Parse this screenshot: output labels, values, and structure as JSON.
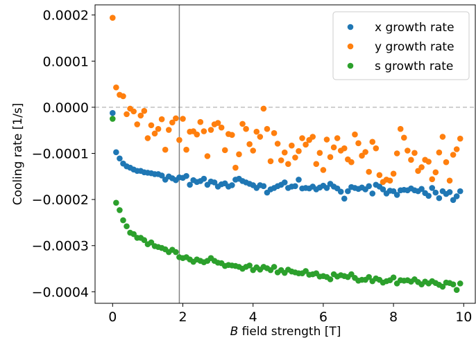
{
  "chart_data": {
    "type": "scatter",
    "xlabel_italic": "B",
    "xlabel_rest": " field strength [T]",
    "ylabel": "Cooling rate [1/s]",
    "xlim": [
      -0.5,
      10.35
    ],
    "ylim": [
      -0.000425,
      0.000222
    ],
    "xticks": [
      0,
      2,
      4,
      6,
      8,
      10
    ],
    "xtick_labels": [
      "0",
      "2",
      "4",
      "6",
      "8",
      "10"
    ],
    "yticks": [
      0.0002,
      0.0001,
      0.0,
      -0.0001,
      -0.0002,
      -0.0003,
      -0.0004
    ],
    "ytick_labels": [
      "0.0002",
      "0.0001",
      "0.0000",
      "−0.0001",
      "−0.0002",
      "−0.0003",
      "−0.0004"
    ],
    "reference_hline": 0.0,
    "reference_vline": 1.9,
    "legend_position": "top-right",
    "series": [
      {
        "name": "x growth rate",
        "color": "#1f77b4",
        "x": [
          0.0,
          0.1,
          0.2,
          0.3,
          0.4,
          0.5,
          0.6,
          0.7,
          0.8,
          0.9,
          1.0,
          1.1,
          1.2,
          1.3,
          1.4,
          1.5,
          1.6,
          1.7,
          1.8,
          1.9,
          2.0,
          2.1,
          2.2,
          2.3,
          2.4,
          2.5,
          2.6,
          2.7,
          2.8,
          2.9,
          3.0,
          3.1,
          3.2,
          3.3,
          3.4,
          3.5,
          3.6,
          3.7,
          3.8,
          3.9,
          4.0,
          4.1,
          4.2,
          4.3,
          4.4,
          4.5,
          4.6,
          4.7,
          4.8,
          4.9,
          5.0,
          5.1,
          5.2,
          5.3,
          5.4,
          5.5,
          5.6,
          5.7,
          5.8,
          5.9,
          6.0,
          6.1,
          6.2,
          6.3,
          6.4,
          6.5,
          6.6,
          6.7,
          6.8,
          6.9,
          7.0,
          7.1,
          7.2,
          7.3,
          7.4,
          7.5,
          7.6,
          7.7,
          7.8,
          7.9,
          8.0,
          8.1,
          8.2,
          8.3,
          8.4,
          8.5,
          8.6,
          8.7,
          8.8,
          8.9,
          9.0,
          9.1,
          9.2,
          9.3,
          9.4,
          9.5,
          9.6,
          9.7,
          9.8,
          9.9
        ],
        "y": [
          -1.25e-05,
          -9.75e-05,
          -0.000111,
          -0.000122,
          -0.000128,
          -0.000131,
          -0.000135,
          -0.000138,
          -0.000138,
          -0.000141,
          -0.000142,
          -0.000143,
          -0.000145,
          -0.000145,
          -0.000148,
          -0.000157,
          -0.00015,
          -0.000154,
          -0.000158,
          -0.000152,
          -0.000153,
          -0.000149,
          -0.000168,
          -0.000158,
          -0.000162,
          -0.00016,
          -0.000155,
          -0.000168,
          -0.000161,
          -0.000163,
          -0.000172,
          -0.000167,
          -0.000165,
          -0.000172,
          -0.000169,
          -0.000157,
          -0.000155,
          -0.00016,
          -0.000163,
          -0.000166,
          -0.000169,
          -0.000175,
          -0.000169,
          -0.000171,
          -0.000185,
          -0.000178,
          -0.000175,
          -0.000171,
          -0.000168,
          -0.000163,
          -0.000175,
          -0.000172,
          -0.000171,
          -0.000157,
          -0.000176,
          -0.000175,
          -0.000176,
          -0.000172,
          -0.000178,
          -0.000174,
          -0.00017,
          -0.000175,
          -0.000166,
          -0.000172,
          -0.000176,
          -0.000183,
          -0.000198,
          -0.000182,
          -0.000173,
          -0.000175,
          -0.000177,
          -0.000174,
          -0.000178,
          -0.000171,
          -0.000187,
          -0.000168,
          -0.000172,
          -0.000178,
          -0.000187,
          -0.000181,
          -0.000182,
          -0.00019,
          -0.00018,
          -0.000179,
          -0.00018,
          -0.000176,
          -0.00018,
          -0.000182,
          -0.000177,
          -0.000186,
          -0.000192,
          -0.000175,
          -0.000185,
          -0.000197,
          -0.000182,
          -0.000188,
          -0.000184,
          -0.000201,
          -0.000193,
          -0.000182
        ]
      },
      {
        "name": "y growth rate",
        "color": "#ff7f0e",
        "x": [
          0.0,
          0.1,
          0.2,
          0.3,
          0.4,
          0.5,
          0.6,
          0.7,
          0.8,
          0.9,
          1.0,
          1.1,
          1.2,
          1.3,
          1.4,
          1.5,
          1.6,
          1.7,
          1.8,
          1.9,
          2.0,
          2.1,
          2.2,
          2.3,
          2.4,
          2.5,
          2.6,
          2.7,
          2.8,
          2.9,
          3.0,
          3.1,
          3.2,
          3.3,
          3.4,
          3.5,
          3.6,
          3.7,
          3.8,
          3.9,
          4.0,
          4.1,
          4.2,
          4.3,
          4.4,
          4.5,
          4.6,
          4.7,
          4.8,
          4.9,
          5.0,
          5.1,
          5.2,
          5.3,
          5.4,
          5.5,
          5.6,
          5.7,
          5.8,
          5.9,
          6.0,
          6.1,
          6.2,
          6.3,
          6.4,
          6.5,
          6.6,
          6.7,
          6.8,
          6.9,
          7.0,
          7.1,
          7.2,
          7.3,
          7.4,
          7.5,
          7.6,
          7.7,
          7.8,
          7.9,
          8.0,
          8.1,
          8.2,
          8.3,
          8.4,
          8.5,
          8.6,
          8.7,
          8.8,
          8.9,
          9.0,
          9.1,
          9.2,
          9.3,
          9.4,
          9.5,
          9.6,
          9.7,
          9.8,
          9.9
        ],
        "y": [
          0.000194,
          4.3e-05,
          2.7e-05,
          2.4e-05,
          -1.5e-05,
          -3e-06,
          -9e-06,
          -3.7e-05,
          -1.8e-05,
          -8e-06,
          -6.7e-05,
          -3.9e-05,
          -5.7e-05,
          -4.7e-05,
          -2.6e-05,
          -9.2e-05,
          -4.9e-05,
          -3.3e-05,
          -2.4e-05,
          -7.1e-05,
          -2.5e-05,
          -9.2e-05,
          -5.3e-05,
          -5.2e-05,
          -5.9e-05,
          -3.2e-05,
          -5.2e-05,
          -0.000106,
          -4.9e-05,
          -3.7e-05,
          -3.4e-05,
          -4.4e-05,
          -9.3e-05,
          -5.8e-05,
          -6e-05,
          -0.000131,
          -0.000102,
          -3.6e-05,
          -4.7e-05,
          -8e-05,
          -9.4e-05,
          -5.3e-05,
          -6.4e-05,
          -3e-06,
          -4.7e-05,
          -0.000117,
          -5.6e-05,
          -7.9e-05,
          -0.000115,
          -9.8e-05,
          -0.000123,
          -8.3e-05,
          -0.000109,
          -9.5e-05,
          -6.7e-05,
          -8.1e-05,
          -7.1e-05,
          -6.4e-05,
          -0.000123,
          -9.9e-05,
          -0.000136,
          -7e-05,
          -0.000108,
          -8.7e-05,
          -6.7e-05,
          -9.4e-05,
          -8.9e-05,
          -0.000113,
          -0.000119,
          -5.9e-05,
          -7.8e-05,
          -0.000105,
          -9.7e-05,
          -0.00014,
          -7.5e-05,
          -8.9e-05,
          -0.000147,
          -0.000162,
          -0.000157,
          -0.000159,
          -0.000144,
          -0.0001,
          -4.7e-05,
          -6.6e-05,
          -9.4e-05,
          -0.000114,
          -9.9e-05,
          -0.000138,
          -0.00013,
          -0.000114,
          -0.000118,
          -0.000156,
          -0.000141,
          -9.8e-05,
          -6.4e-05,
          -0.000119,
          -0.000159,
          -0.000103,
          -9.1e-05,
          -6.8e-05
        ]
      },
      {
        "name": "s growth rate",
        "color": "#2ca02c",
        "x": [
          0.0,
          0.1,
          0.2,
          0.3,
          0.4,
          0.5,
          0.6,
          0.7,
          0.8,
          0.9,
          1.0,
          1.1,
          1.2,
          1.3,
          1.4,
          1.5,
          1.6,
          1.7,
          1.8,
          1.9,
          2.0,
          2.1,
          2.2,
          2.3,
          2.4,
          2.5,
          2.6,
          2.7,
          2.8,
          2.9,
          3.0,
          3.1,
          3.2,
          3.3,
          3.4,
          3.5,
          3.6,
          3.7,
          3.8,
          3.9,
          4.0,
          4.1,
          4.2,
          4.3,
          4.4,
          4.5,
          4.6,
          4.7,
          4.8,
          4.9,
          5.0,
          5.1,
          5.2,
          5.3,
          5.4,
          5.5,
          5.6,
          5.7,
          5.8,
          5.9,
          6.0,
          6.1,
          6.2,
          6.3,
          6.4,
          6.5,
          6.6,
          6.7,
          6.8,
          6.9,
          7.0,
          7.1,
          7.2,
          7.3,
          7.4,
          7.5,
          7.6,
          7.7,
          7.8,
          7.9,
          8.0,
          8.1,
          8.2,
          8.3,
          8.4,
          8.5,
          8.6,
          8.7,
          8.8,
          8.9,
          9.0,
          9.1,
          9.2,
          9.3,
          9.4,
          9.5,
          9.6,
          9.7,
          9.8,
          9.9
        ],
        "y": [
          -2.5e-05,
          -0.000207,
          -0.000223,
          -0.000245,
          -0.000258,
          -0.000272,
          -0.000275,
          -0.000283,
          -0.000283,
          -0.000288,
          -0.000297,
          -0.000293,
          -0.000301,
          -0.000303,
          -0.000305,
          -0.000308,
          -0.000314,
          -0.000309,
          -0.000314,
          -0.000325,
          -0.000327,
          -0.000325,
          -0.00033,
          -0.000335,
          -0.00033,
          -0.000333,
          -0.000336,
          -0.000333,
          -0.000327,
          -0.000333,
          -0.000337,
          -0.000338,
          -0.000344,
          -0.000342,
          -0.000343,
          -0.000344,
          -0.000346,
          -0.00035,
          -0.000346,
          -0.000343,
          -0.000353,
          -0.000347,
          -0.000352,
          -0.000346,
          -0.000349,
          -0.000353,
          -0.000346,
          -0.000358,
          -0.000353,
          -0.000359,
          -0.000352,
          -0.000356,
          -0.000358,
          -0.00036,
          -0.00036,
          -0.000355,
          -0.000363,
          -0.000362,
          -0.00036,
          -0.000367,
          -0.000366,
          -0.000368,
          -0.000373,
          -0.000362,
          -0.000367,
          -0.000364,
          -0.000366,
          -0.000368,
          -0.000362,
          -0.00037,
          -0.000376,
          -0.000374,
          -0.000374,
          -0.000368,
          -0.000377,
          -0.000371,
          -0.000374,
          -0.00038,
          -0.000377,
          -0.000375,
          -0.000369,
          -0.000382,
          -0.000375,
          -0.000376,
          -0.000375,
          -0.000378,
          -0.000373,
          -0.000379,
          -0.000384,
          -0.000378,
          -0.000382,
          -0.000377,
          -0.000381,
          -0.000385,
          -0.000389,
          -0.00038,
          -0.000381,
          -0.000384,
          -0.000396,
          -0.000382
        ]
      }
    ]
  }
}
